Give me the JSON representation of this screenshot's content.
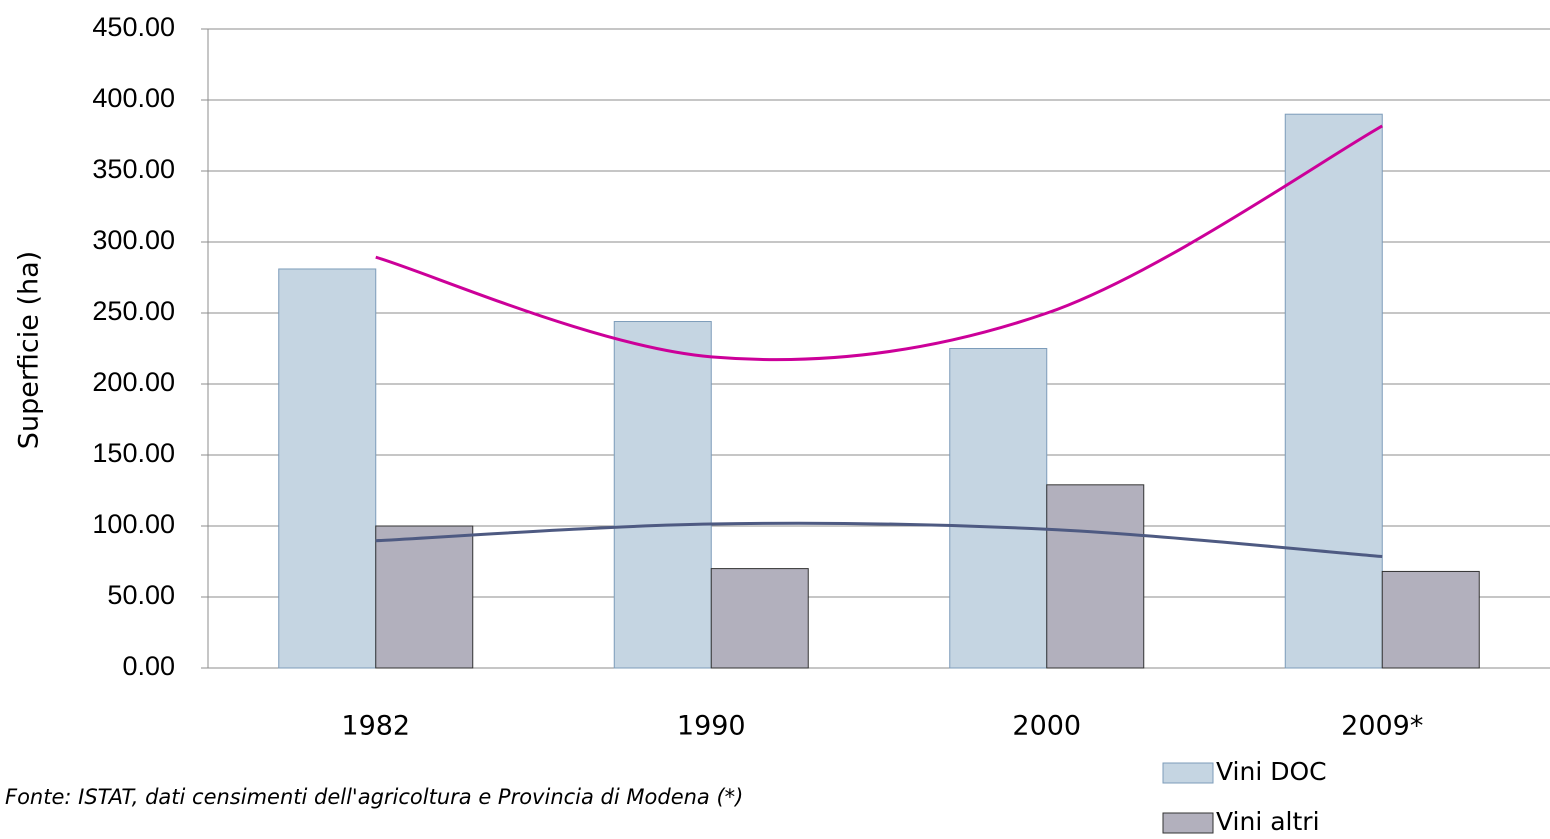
{
  "chart_data": {
    "type": "bar",
    "y_label": "Superficie (ha)",
    "note": "Fonte: ISTAT, dati censimenti dell'agricoltura e Provincia di Modena  (*)",
    "categories": [
      "1982",
      "1990",
      "2000",
      "2009*"
    ],
    "series": [
      {
        "name": "Vini DOC",
        "color": "#c5d5e2",
        "values": [
          281,
          244,
          225,
          390
        ]
      },
      {
        "name": "Vini altri",
        "color": "#b2b0bd",
        "values": [
          100,
          70,
          129,
          68
        ]
      }
    ],
    "trendlines": [
      {
        "color": "#cc0099",
        "values": [
          289.3,
          219.1,
          249.9,
          381.7
        ]
      },
      {
        "color": "#4e5a82",
        "values": [
          89.6,
          101.4,
          97.7,
          78.5
        ]
      }
    ],
    "ylim": [
      0,
      450
    ],
    "yticks": [
      {
        "value": 0,
        "label": "0.00"
      },
      {
        "value": 50,
        "label": "50.00"
      },
      {
        "value": 100,
        "label": "100.00"
      },
      {
        "value": 150,
        "label": "150.00"
      },
      {
        "value": 200,
        "label": "200.00"
      },
      {
        "value": 250,
        "label": "250.00"
      },
      {
        "value": 300,
        "label": "300.00"
      },
      {
        "value": 350,
        "label": "350.00"
      },
      {
        "value": 400,
        "label": "400.00"
      },
      {
        "value": 450,
        "label": "450.00"
      }
    ],
    "grid": true
  }
}
